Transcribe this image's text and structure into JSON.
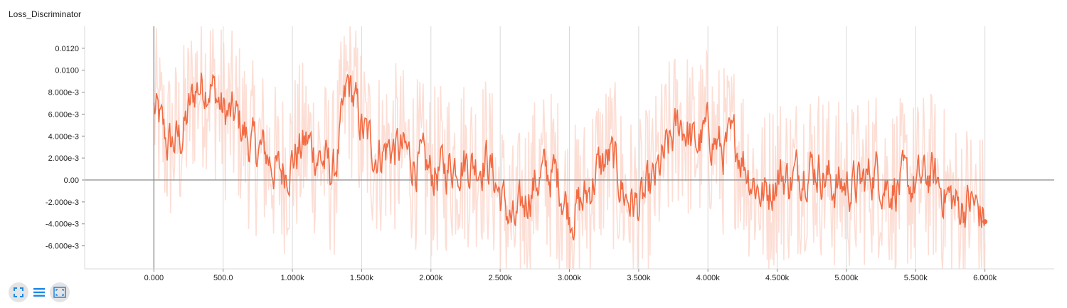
{
  "title": "Loss_Discriminator",
  "colors": {
    "line": "#f26b43",
    "raw": "#fbd6cb",
    "axis": "#8a8a8a",
    "grid": "#d9d9d9",
    "icon": "#1e88e5",
    "button_bg": "#e4e4e4"
  },
  "toolbar": {
    "icons": [
      "fit-domain-icon",
      "toggle-log-scale-icon",
      "reset-zoom-icon"
    ]
  },
  "chart_data": {
    "type": "line",
    "title": "Loss_Discriminator",
    "xlabel": "",
    "ylabel": "",
    "xlim": [
      -500,
      6500
    ],
    "ylim": [
      -0.0081,
      0.014
    ],
    "x_ticks": [
      0,
      500,
      1000,
      1500,
      2000,
      2500,
      3000,
      3500,
      4000,
      4500,
      5000,
      5500,
      6000
    ],
    "x_tick_labels": [
      "0.000",
      "500.0",
      "1.000k",
      "1.500k",
      "2.000k",
      "2.500k",
      "3.000k",
      "3.500k",
      "4.000k",
      "4.500k",
      "5.000k",
      "5.500k",
      "6.000k"
    ],
    "y_ticks": [
      -0.006,
      -0.004,
      -0.002,
      0,
      0.002,
      0.004,
      0.006,
      0.008,
      0.01,
      0.012
    ],
    "y_tick_labels": [
      "-6.000e-3",
      "-4.000e-3",
      "-2.000e-3",
      "0.00",
      "2.000e-3",
      "4.000e-3",
      "6.000e-3",
      "8.000e-3",
      "0.0100",
      "0.0120"
    ],
    "grid": "vertical",
    "series": [
      {
        "smoothed": true,
        "x": [
          0,
          100,
          200,
          300,
          400,
          500,
          600,
          700,
          800,
          900,
          1000,
          1100,
          1200,
          1300,
          1400,
          1500,
          1600,
          1700,
          1800,
          1900,
          2000,
          2100,
          2200,
          2300,
          2400,
          2500,
          2600,
          2700,
          2800,
          2900,
          3000,
          3100,
          3200,
          3300,
          3400,
          3500,
          3600,
          3700,
          3800,
          3900,
          4000,
          4100,
          4200,
          4300,
          4400,
          4500,
          4600,
          4700,
          4800,
          4900,
          5000,
          5100,
          5200,
          5300,
          5400,
          5500,
          5600,
          5700,
          5800,
          5900,
          6000
        ],
        "y": [
          0.0065,
          0.003,
          0.004,
          0.0085,
          0.009,
          0.006,
          0.0055,
          0.003,
          0.0025,
          0.0005,
          0.002,
          0.0035,
          0.002,
          0.0005,
          0.009,
          0.0045,
          0.0025,
          0.003,
          0.0025,
          0.0015,
          0.0005,
          0.001,
          0.002,
          0.0015,
          0.002,
          -0.0015,
          -0.0045,
          -0.001,
          0.0005,
          0.0005,
          -0.003,
          -0.002,
          0.001,
          0.002,
          -0.0015,
          -0.0025,
          -0.0005,
          0.0025,
          0.0055,
          0.003,
          0.0045,
          0.0025,
          0.0035,
          0.0005,
          -0.0015,
          0.0005,
          0.0,
          0.0015,
          0.001,
          -0.0005,
          -0.0005,
          -0.0005,
          0.001,
          -0.0005,
          -0.0005,
          -0.0005,
          0.0005,
          -0.001,
          -0.0025,
          -0.002,
          -0.0038
        ]
      }
    ],
    "last_point": {
      "x": 6000,
      "y": -0.0038
    }
  }
}
